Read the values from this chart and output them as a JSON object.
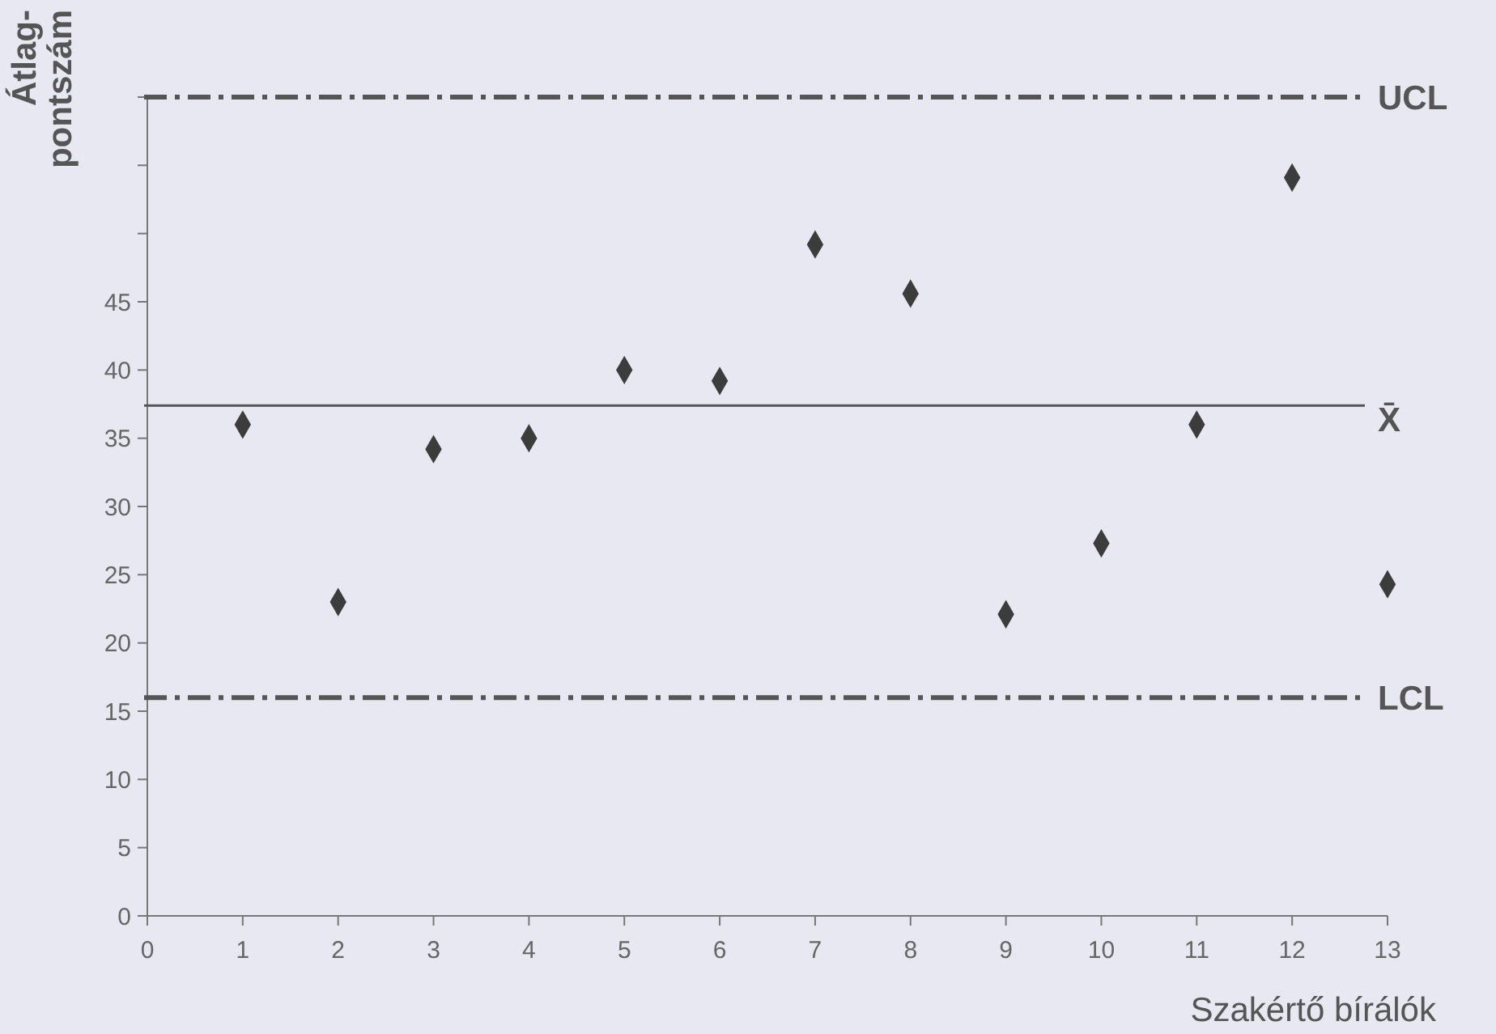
{
  "chart_data": {
    "type": "scatter",
    "xlabel": "Szakértő bírálók",
    "ylabel": "Átlag-\npontszám",
    "x": [
      1,
      2,
      3,
      4,
      5,
      6,
      7,
      8,
      9,
      10,
      11,
      12,
      13
    ],
    "values": [
      36.0,
      23.0,
      34.2,
      35.0,
      40.0,
      39.2,
      49.2,
      45.6,
      22.1,
      27.3,
      36.0,
      54.1,
      24.3
    ],
    "color": "#3c3c3c",
    "marker": "diamond",
    "grid": false,
    "xlim": [
      0,
      13
    ],
    "xticks": [
      0,
      1,
      2,
      3,
      4,
      5,
      6,
      7,
      8,
      9,
      10,
      11,
      12,
      13
    ],
    "ylim": [
      0,
      60
    ],
    "yticks": [
      0,
      5,
      10,
      15,
      20,
      25,
      30,
      35,
      40,
      45,
      {
        "value": 50,
        "label": null
      },
      {
        "value": 55,
        "label": null
      },
      {
        "value": 60,
        "label": null
      }
    ],
    "ref_lines": [
      {
        "axis": "y",
        "value": 60,
        "label": "UCL",
        "line_style": "dashed",
        "color": "#555555"
      },
      {
        "axis": "y",
        "value": 37.4,
        "label": "X̄",
        "line_style": "solid",
        "color": "#555555"
      },
      {
        "axis": "y",
        "value": 16,
        "label": "LCL",
        "line_style": "dashed",
        "color": "#555555"
      }
    ]
  }
}
